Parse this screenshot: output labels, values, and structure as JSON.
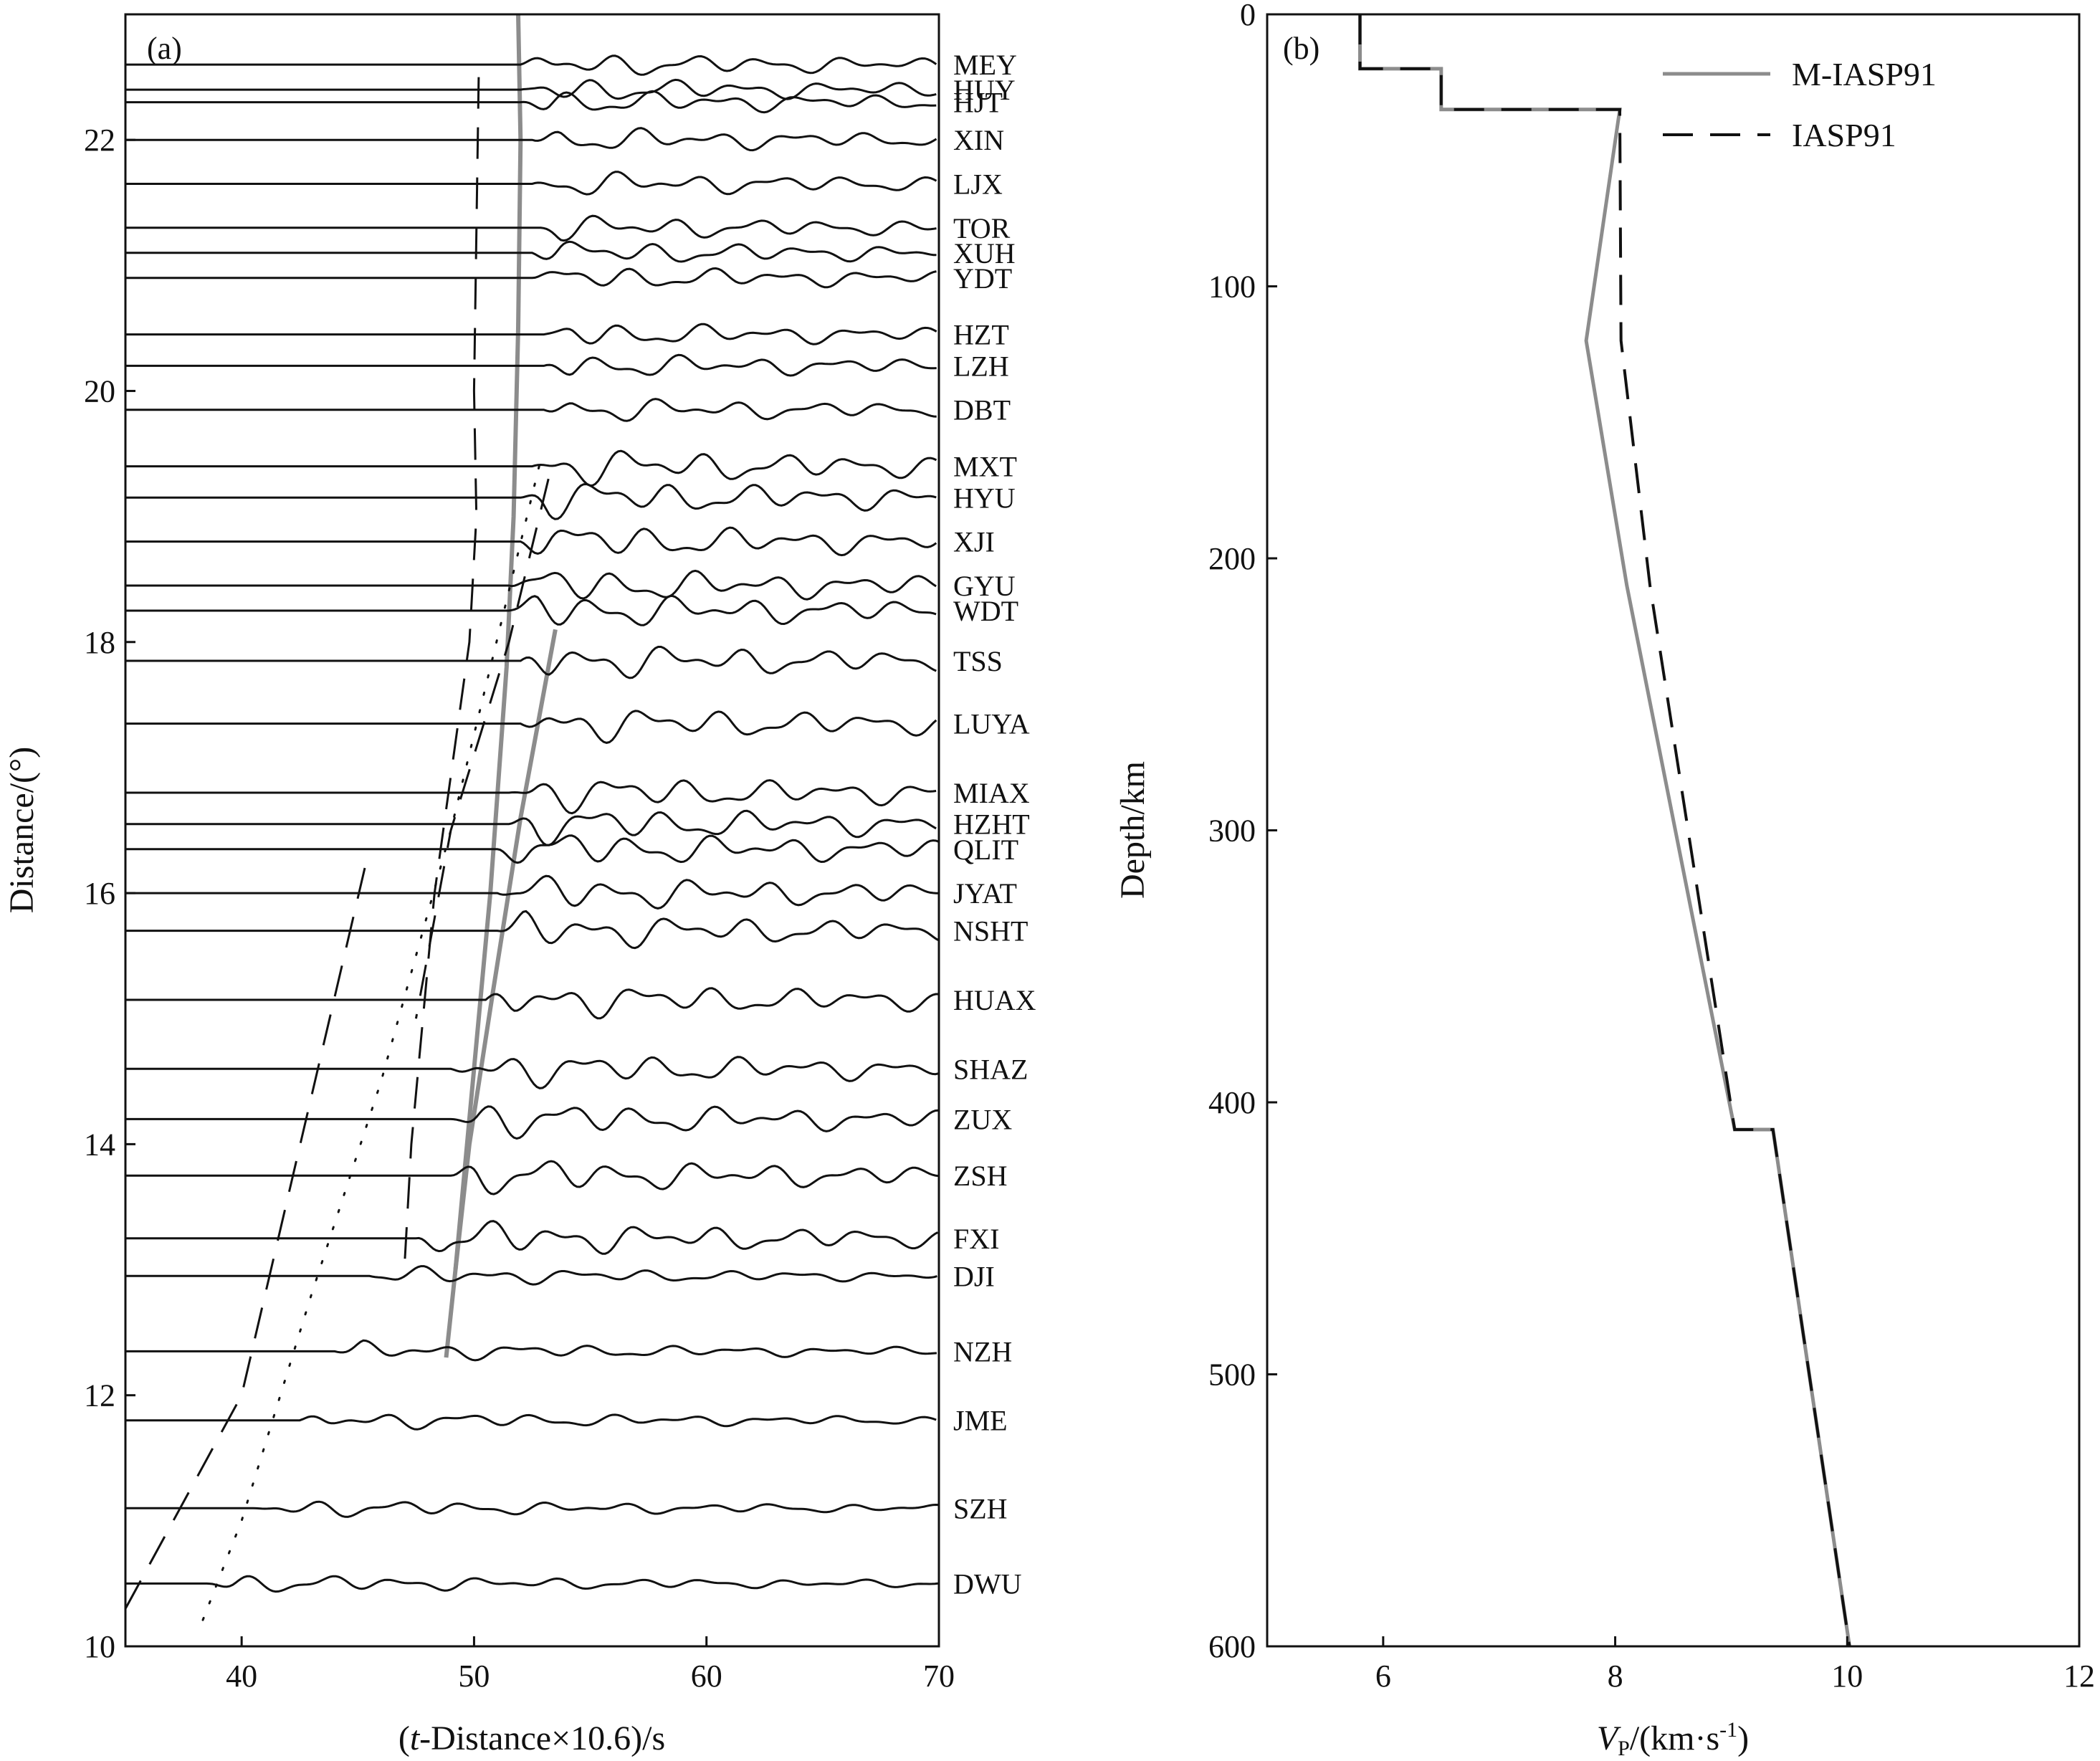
{
  "chart_data": [
    {
      "panel": "(a)",
      "type": "line",
      "xlabel_parts": [
        "(",
        "t",
        "-Distance×10.6)/s"
      ],
      "ylabel": "Distance/(°)",
      "xlim": [
        35,
        70
      ],
      "ylim": [
        10,
        23
      ],
      "xticks": [
        40,
        50,
        60,
        70
      ],
      "yticks": [
        10,
        12,
        14,
        16,
        18,
        20,
        22
      ],
      "grid": false,
      "stations": [
        {
          "name": "MEY",
          "distance": 22.6,
          "onset": 52.0
        },
        {
          "name": "HUY",
          "distance": 22.4,
          "onset": 52.0
        },
        {
          "name": "HJT",
          "distance": 22.3,
          "onset": 52.0
        },
        {
          "name": "XIN",
          "distance": 22.0,
          "onset": 52.5
        },
        {
          "name": "LJX",
          "distance": 21.65,
          "onset": 52.5
        },
        {
          "name": "TOR",
          "distance": 21.3,
          "onset": 52.5
        },
        {
          "name": "XUH",
          "distance": 21.1,
          "onset": 52.5
        },
        {
          "name": "YDT",
          "distance": 20.9,
          "onset": 52.5
        },
        {
          "name": "HZT",
          "distance": 20.45,
          "onset": 53.0
        },
        {
          "name": "LZH",
          "distance": 20.2,
          "onset": 53.0
        },
        {
          "name": "DBT",
          "distance": 19.85,
          "onset": 53.0
        },
        {
          "name": "MXT",
          "distance": 19.4,
          "onset": 52.5
        },
        {
          "name": "HYU",
          "distance": 19.15,
          "onset": 52.0
        },
        {
          "name": "XJI",
          "distance": 18.8,
          "onset": 52.0
        },
        {
          "name": "GYU",
          "distance": 18.45,
          "onset": 51.5
        },
        {
          "name": "WDT",
          "distance": 18.25,
          "onset": 51.5
        },
        {
          "name": "TSS",
          "distance": 17.85,
          "onset": 52.0
        },
        {
          "name": "LUYA",
          "distance": 17.35,
          "onset": 52.0
        },
        {
          "name": "MIAX",
          "distance": 16.8,
          "onset": 51.5
        },
        {
          "name": "HZHT",
          "distance": 16.55,
          "onset": 51.5
        },
        {
          "name": "QLIT",
          "distance": 16.35,
          "onset": 51.0
        },
        {
          "name": "JYAT",
          "distance": 16.0,
          "onset": 51.0
        },
        {
          "name": "NSHT",
          "distance": 15.7,
          "onset": 51.0
        },
        {
          "name": "HUAX",
          "distance": 15.15,
          "onset": 50.5
        },
        {
          "name": "SHAZ",
          "distance": 14.6,
          "onset": 49.0
        },
        {
          "name": "ZUX",
          "distance": 14.2,
          "onset": 49.0
        },
        {
          "name": "ZSH",
          "distance": 13.75,
          "onset": 49.0
        },
        {
          "name": "FXI",
          "distance": 13.25,
          "onset": 47.5
        },
        {
          "name": "DJI",
          "distance": 12.95,
          "onset": 45.5
        },
        {
          "name": "NZH",
          "distance": 12.35,
          "onset": 44.0
        },
        {
          "name": "JME",
          "distance": 11.8,
          "onset": 42.5
        },
        {
          "name": "SZH",
          "distance": 11.1,
          "onset": 40.5
        },
        {
          "name": "DWU",
          "distance": 10.5,
          "onset": 38.5
        }
      ],
      "curves": [
        {
          "style": "solid-gray",
          "points": [
            [
              51.9,
              23.0
            ],
            [
              52.0,
              22.0
            ],
            [
              51.9,
              20.5
            ],
            [
              51.7,
              19.0
            ],
            [
              51.4,
              17.8
            ],
            [
              50.7,
              16.0
            ],
            [
              49.8,
              14.2
            ],
            [
              49.2,
              13.0
            ],
            [
              48.8,
              12.3
            ]
          ]
        },
        {
          "style": "solid-gray",
          "points": [
            [
              53.5,
              18.1
            ],
            [
              52.0,
              16.6
            ],
            [
              50.8,
              15.2
            ],
            [
              49.8,
              14.0
            ],
            [
              49.2,
              13.0
            ]
          ]
        },
        {
          "style": "dashed",
          "points": [
            [
              50.2,
              22.5
            ],
            [
              50.0,
              20.0
            ],
            [
              50.1,
              19.0
            ],
            [
              49.8,
              18.0
            ],
            [
              48.3,
              16.0
            ],
            [
              47.3,
              14.0
            ],
            [
              47.0,
              13.0
            ]
          ]
        },
        {
          "style": "dashed",
          "points": [
            [
              53.2,
              19.3
            ],
            [
              51.5,
              18.0
            ],
            [
              49.0,
              16.5
            ],
            [
              47.5,
              15.0
            ]
          ]
        },
        {
          "style": "dashed",
          "points": [
            [
              45.3,
              16.2
            ],
            [
              40.0,
              12.0
            ],
            [
              35.0,
              10.3
            ]
          ]
        },
        {
          "style": "dotted",
          "points": [
            [
              52.8,
              19.4
            ],
            [
              49.0,
              16.5
            ],
            [
              46.0,
              14.5
            ],
            [
              43.0,
              12.8
            ],
            [
              40.0,
              11.0
            ],
            [
              38.1,
              10.1
            ]
          ]
        }
      ]
    },
    {
      "panel": "(b)",
      "type": "line",
      "xlabel_parts": [
        "V",
        "P",
        "/(km·s",
        "-1",
        ")"
      ],
      "ylabel": "Depth/km",
      "xlim": [
        5,
        12
      ],
      "ylim": [
        0,
        600
      ],
      "y_inverted": true,
      "xticks": [
        6,
        8,
        10,
        12
      ],
      "yticks": [
        0,
        100,
        200,
        300,
        400,
        500,
        600
      ],
      "grid": false,
      "legend_position": "top-right",
      "series": [
        {
          "name": "M-IASP91",
          "color": "#8c8c8c",
          "style": "solid",
          "x": [
            5.8,
            5.8,
            6.5,
            6.5,
            8.04,
            7.75,
            8.1,
            9.03,
            9.36,
            10.02
          ],
          "y": [
            0,
            20,
            20,
            35,
            35,
            120,
            210,
            410,
            410,
            600
          ]
        },
        {
          "name": "IASP91",
          "color": "#111111",
          "style": "dashed",
          "x": [
            5.8,
            5.8,
            6.5,
            6.5,
            8.04,
            8.05,
            8.3,
            9.03,
            9.36,
            10.02
          ],
          "y": [
            0,
            20,
            20,
            35,
            35,
            120,
            210,
            410,
            410,
            600
          ]
        }
      ]
    }
  ]
}
